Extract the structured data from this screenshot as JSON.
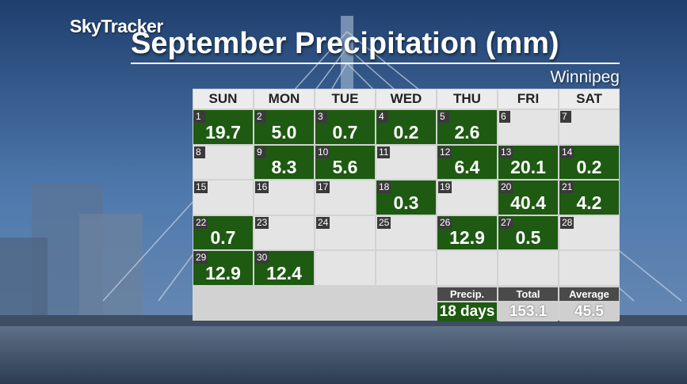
{
  "header": {
    "brand": "SkyTracker",
    "title": "September Precipitation (mm)",
    "location": "Winnipeg"
  },
  "calendar": {
    "weekdays": [
      "SUN",
      "MON",
      "TUE",
      "WED",
      "THU",
      "FRI",
      "SAT"
    ],
    "weeks": [
      [
        {
          "day": 1,
          "value": "19.7"
        },
        {
          "day": 2,
          "value": "5.0"
        },
        {
          "day": 3,
          "value": "0.7"
        },
        {
          "day": 4,
          "value": "0.2"
        },
        {
          "day": 5,
          "value": "2.6"
        },
        {
          "day": 6
        },
        {
          "day": 7
        }
      ],
      [
        {
          "day": 8
        },
        {
          "day": 9,
          "value": "8.3"
        },
        {
          "day": 10,
          "value": "5.6"
        },
        {
          "day": 11
        },
        {
          "day": 12,
          "value": "6.4"
        },
        {
          "day": 13,
          "value": "20.1"
        },
        {
          "day": 14,
          "value": "0.2"
        }
      ],
      [
        {
          "day": 15
        },
        {
          "day": 16
        },
        {
          "day": 17
        },
        {
          "day": 18,
          "value": "0.3"
        },
        {
          "day": 19
        },
        {
          "day": 20,
          "value": "40.4"
        },
        {
          "day": 21,
          "value": "4.2"
        }
      ],
      [
        {
          "day": 22,
          "value": "0.7"
        },
        {
          "day": 23
        },
        {
          "day": 24
        },
        {
          "day": 25
        },
        {
          "day": 26,
          "value": "12.9"
        },
        {
          "day": 27,
          "value": "0.5"
        },
        {
          "day": 28
        }
      ],
      [
        {
          "day": 29,
          "value": "12.9"
        },
        {
          "day": 30,
          "value": "12.4"
        }
      ]
    ]
  },
  "summary": {
    "labels": [
      "Precip.",
      "Total",
      "Average"
    ],
    "values": [
      "18 days",
      "153.1",
      "45.5"
    ]
  }
}
